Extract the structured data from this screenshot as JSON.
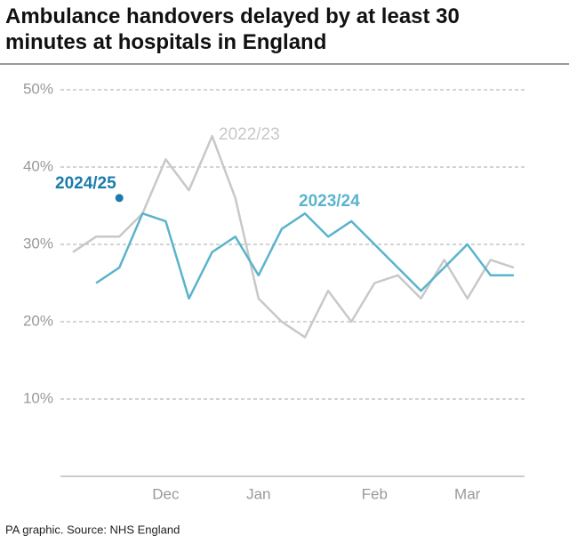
{
  "chart_data": {
    "type": "line",
    "title": "Ambulance handovers delayed by at least 30 minutes at hospitals in England",
    "source": "PA graphic. Source: NHS England",
    "categories": [
      null,
      null,
      null,
      null,
      "Dec",
      null,
      null,
      null,
      "Jan",
      null,
      null,
      null,
      null,
      "Feb",
      null,
      null,
      null,
      "Mar",
      null,
      null
    ],
    "series": [
      {
        "name": "2022/23",
        "color": "#c8c8c8",
        "values": [
          29,
          31,
          31,
          34,
          41,
          37,
          44,
          36,
          23,
          20,
          18,
          24,
          20,
          25,
          26,
          23,
          28,
          23,
          28,
          27
        ]
      },
      {
        "name": "2023/24",
        "color": "#5ab4cc",
        "values": [
          null,
          25,
          27,
          34,
          33,
          23,
          29,
          31,
          26,
          32,
          34,
          31,
          33,
          30,
          27,
          24,
          27,
          30,
          26,
          26
        ]
      },
      {
        "name": "2024/25",
        "color": "#1a7cad",
        "values": [
          null,
          null,
          36,
          null,
          null,
          null,
          null,
          null,
          null,
          null,
          null,
          null,
          null,
          null,
          null,
          null,
          null,
          null,
          null,
          null
        ]
      }
    ],
    "ylim": [
      0,
      50
    ],
    "yticks": [
      {
        "value": 10,
        "label": "10%"
      },
      {
        "value": 20,
        "label": "20%"
      },
      {
        "value": 30,
        "label": "30%"
      },
      {
        "value": 40,
        "label": "40%"
      },
      {
        "value": 50,
        "label": "50%"
      }
    ],
    "grid": true
  }
}
